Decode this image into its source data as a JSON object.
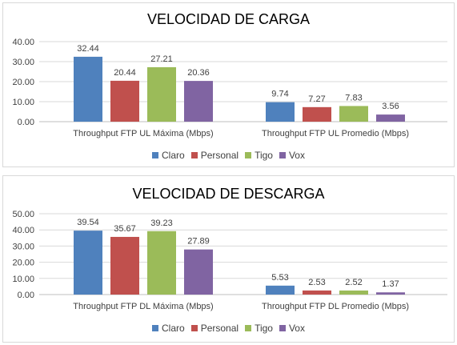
{
  "chart_data": [
    {
      "type": "bar",
      "title": "VELOCIDAD DE CARGA",
      "categories": [
        "Throughput FTP UL Máxima (Mbps)",
        "Throughput FTP UL Promedio (Mbps)"
      ],
      "series": [
        {
          "name": "Claro",
          "values": [
            32.44,
            9.74
          ],
          "color": "#4f81bd"
        },
        {
          "name": "Personal",
          "values": [
            20.44,
            7.27
          ],
          "color": "#c0504d"
        },
        {
          "name": "Tigo",
          "values": [
            27.21,
            7.83
          ],
          "color": "#9bbb59"
        },
        {
          "name": "Vox",
          "values": [
            20.36,
            3.56
          ],
          "color": "#8064a2"
        }
      ],
      "yticks": [
        "0.00",
        "10.00",
        "20.00",
        "30.00",
        "40.00"
      ],
      "ylim": [
        0,
        40
      ],
      "grid": true,
      "legend": "bottom"
    },
    {
      "type": "bar",
      "title": "VELOCIDAD DE DESCARGA",
      "categories": [
        "Throughput FTP DL Máxima (Mbps)",
        "Throughput FTP DL Promedio (Mbps)"
      ],
      "series": [
        {
          "name": "Claro",
          "values": [
            39.54,
            5.53
          ],
          "color": "#4f81bd"
        },
        {
          "name": "Personal",
          "values": [
            35.67,
            2.53
          ],
          "color": "#c0504d"
        },
        {
          "name": "Tigo",
          "values": [
            39.23,
            2.52
          ],
          "color": "#9bbb59"
        },
        {
          "name": "Vox",
          "values": [
            27.89,
            1.37
          ],
          "color": "#8064a2"
        }
      ],
      "yticks": [
        "0.00",
        "10.00",
        "20.00",
        "30.00",
        "40.00",
        "50.00"
      ],
      "ylim": [
        0,
        50
      ],
      "grid": true,
      "legend": "bottom"
    }
  ]
}
